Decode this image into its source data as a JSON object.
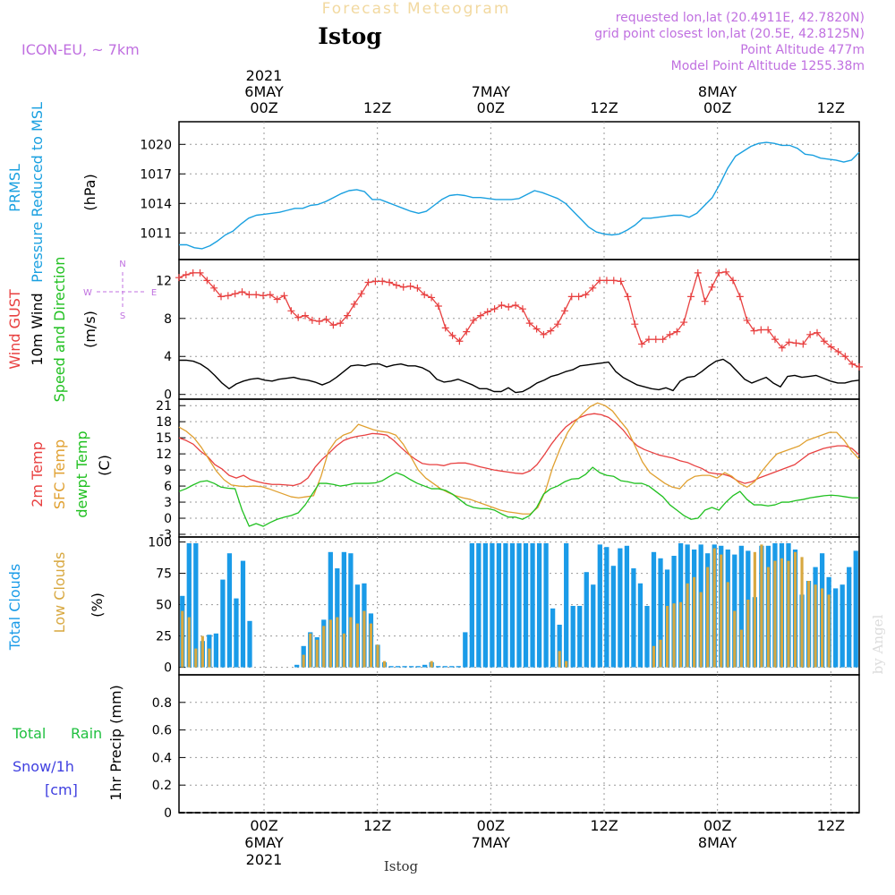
{
  "header": {
    "top_title": "Forecast Meteogram",
    "station": "Istog",
    "model": "ICON-EU, ~ 7km",
    "info_lines": [
      "requested lon,lat (20.4911E, 42.7820N)",
      "grid point closest lon,lat (20.5E, 42.8125N)",
      "Point Altitude 477m",
      "Model Point Altitude 1255.38m"
    ],
    "watermark": "by Angel",
    "bottom_label": "Istog"
  },
  "time_axis": {
    "start": "2021-05-05T15:00Z",
    "end": "2021-05-08T15:00Z",
    "ticks": [
      {
        "hour": 9,
        "time": "00Z",
        "date": "6MAY",
        "year": "2021"
      },
      {
        "hour": 21,
        "time": "12Z",
        "date": "",
        "year": ""
      },
      {
        "hour": 33,
        "time": "00Z",
        "date": "7MAY",
        "year": ""
      },
      {
        "hour": 45,
        "time": "12Z",
        "date": "",
        "year": ""
      },
      {
        "hour": 57,
        "time": "00Z",
        "date": "8MAY",
        "year": ""
      },
      {
        "hour": 69,
        "time": "12Z",
        "date": "",
        "year": ""
      }
    ]
  },
  "colors": {
    "pressure": "#1aa0e0",
    "gust": "#e84040",
    "wind": "#000000",
    "t2m": "#e84040",
    "sfc": "#e0a030",
    "dewpt": "#20c020",
    "total_cloud": "#1a9be8",
    "low_cloud": "#d8a840",
    "purple": "#c070e0",
    "rain": "#20c040",
    "snow": "#4040e0",
    "grid": "#999999"
  },
  "panel_labels": {
    "pressure": {
      "lines": [
        "PRMSL",
        "Pressure Reduced to MSL"
      ],
      "unit": "(hPa)"
    },
    "wind": {
      "lines": [
        "Wind GUST",
        "10m Wind",
        "Speed and Direction"
      ],
      "unit": "(m/s)"
    },
    "compass": {
      "n": "N",
      "s": "S",
      "w": "W",
      "e": "E"
    },
    "temp": {
      "lines": [
        "2m Temp",
        "SFC Temp",
        "dewpt Temp"
      ],
      "unit": "(C)"
    },
    "cloud": {
      "lines": [
        "Total Clouds",
        "Low Clouds"
      ],
      "unit": "(%)"
    },
    "precip": {
      "lines": [
        "Total",
        "Rain",
        "Snow/1h",
        "[cm]"
      ],
      "ylabel": "1hr Precip (mm)"
    }
  },
  "chart_data": [
    {
      "type": "line",
      "title": "PRMSL Pressure Reduced to MSL",
      "ylabel": "(hPa)",
      "ylim": [
        1008.3,
        1022.3
      ],
      "yticks": [
        1011,
        1014,
        1017,
        1020
      ],
      "ytick_labels": [
        "1011",
        "1014",
        "1017",
        "1020"
      ],
      "grid": true,
      "x_hours_start": 0,
      "x_hours_step": 1,
      "series": [
        {
          "key": "prmsl",
          "values": [
            1009.8,
            1009.8,
            1009.5,
            1009.4,
            1009.7,
            1010.2,
            1010.8,
            1011.2,
            1011.9,
            1012.5,
            1012.8,
            1012.9,
            1013.0,
            1013.1,
            1013.3,
            1013.5,
            1013.5,
            1013.8,
            1013.9,
            1014.2,
            1014.6,
            1015.0,
            1015.3,
            1015.4,
            1015.2,
            1014.4,
            1014.4,
            1014.1,
            1013.8,
            1013.5,
            1013.2,
            1013.0,
            1013.2,
            1013.8,
            1014.4,
            1014.8,
            1014.9,
            1014.8,
            1014.6,
            1014.6,
            1014.5,
            1014.4,
            1014.4,
            1014.4,
            1014.5,
            1014.9,
            1015.3,
            1015.1,
            1014.8,
            1014.5,
            1014.0,
            1013.2,
            1012.4,
            1011.6,
            1011.1,
            1010.9,
            1010.8,
            1010.9,
            1011.3,
            1011.8,
            1012.5,
            1012.5,
            1012.6,
            1012.7,
            1012.8,
            1012.8,
            1012.6,
            1013.0,
            1013.8,
            1014.6,
            1016.0,
            1017.6,
            1018.8,
            1019.3,
            1019.8,
            1020.1,
            1020.2,
            1020.1,
            1019.9,
            1019.9,
            1019.6,
            1019.0,
            1018.9,
            1018.6,
            1018.5,
            1018.4,
            1018.2,
            1018.4,
            1019.2
          ]
        }
      ]
    },
    {
      "type": "line",
      "title": "Wind GUST / 10m Wind Speed and Direction",
      "ylabel": "(m/s)",
      "ylim": [
        -0.5,
        14.2
      ],
      "yticks": [
        0,
        4,
        8,
        12
      ],
      "ytick_labels": [
        "0",
        "4",
        "8",
        "12"
      ],
      "grid": true,
      "x_hours_start": 0,
      "x_hours_step": 1,
      "series": [
        {
          "key": "gust",
          "name": "Wind GUST",
          "values": [
            12.3,
            12.6,
            12.8,
            12.8,
            12.0,
            11.2,
            10.3,
            10.4,
            10.6,
            10.8,
            10.5,
            10.5,
            10.4,
            10.5,
            10.0,
            10.4,
            8.8,
            8.1,
            8.3,
            7.8,
            7.7,
            7.9,
            7.3,
            7.5,
            8.3,
            9.5,
            10.6,
            11.8,
            11.9,
            11.9,
            11.8,
            11.5,
            11.3,
            11.4,
            11.2,
            10.5,
            10.2,
            9.3,
            7.0,
            6.2,
            5.6,
            6.6,
            7.8,
            8.3,
            8.7,
            9.0,
            9.4,
            9.2,
            9.4,
            9.0,
            7.5,
            6.9,
            6.3,
            6.7,
            7.4,
            8.8,
            10.3,
            10.3,
            10.5,
            11.2,
            12.0,
            12.0,
            12.0,
            11.9,
            10.3,
            7.4,
            5.3,
            5.8,
            5.8,
            5.8,
            6.3,
            6.6,
            7.6,
            10.3,
            12.8,
            9.8,
            11.3,
            12.8,
            12.9,
            12.0,
            10.3,
            7.8,
            6.7,
            6.8,
            6.8,
            5.8,
            4.9,
            5.5,
            5.4,
            5.3,
            6.3,
            6.5,
            5.6,
            5.0,
            4.5,
            4.0,
            3.2,
            2.9
          ]
        },
        {
          "key": "wind",
          "name": "10m Wind",
          "values": [
            3.6,
            3.6,
            3.5,
            3.2,
            2.7,
            2.0,
            1.2,
            0.6,
            1.1,
            1.4,
            1.6,
            1.7,
            1.5,
            1.4,
            1.6,
            1.7,
            1.8,
            1.6,
            1.5,
            1.3,
            1.0,
            1.3,
            1.8,
            2.4,
            3.0,
            3.1,
            3.0,
            3.2,
            3.2,
            2.9,
            3.1,
            3.2,
            3.0,
            3.0,
            2.8,
            2.4,
            1.6,
            1.3,
            1.4,
            1.6,
            1.3,
            1.0,
            0.6,
            0.6,
            0.3,
            0.3,
            0.7,
            0.2,
            0.3,
            0.7,
            1.2,
            1.5,
            1.9,
            2.1,
            2.4,
            2.6,
            3.0,
            3.1,
            3.2,
            3.3,
            3.4,
            2.4,
            1.8,
            1.4,
            1.0,
            0.8,
            0.6,
            0.5,
            0.7,
            0.4,
            1.4,
            1.8,
            1.9,
            2.4,
            3.0,
            3.5,
            3.7,
            3.2,
            2.4,
            1.6,
            1.2,
            1.5,
            1.8,
            1.2,
            0.8,
            1.9,
            2.0,
            1.8,
            1.9,
            2.0,
            1.7,
            1.4,
            1.2,
            1.2,
            1.4,
            1.5
          ]
        }
      ]
    },
    {
      "type": "line",
      "title": "2m Temp / SFC Temp / dewpt Temp",
      "ylabel": "(C)",
      "ylim": [
        -3.5,
        22.2
      ],
      "yticks": [
        -3,
        0,
        3,
        6,
        9,
        12,
        15,
        18,
        21
      ],
      "ytick_labels": [
        "-3",
        "0",
        "3",
        "6",
        "9",
        "12",
        "15",
        "18",
        "21"
      ],
      "grid": true,
      "x_hours_start": 0,
      "x_hours_step": 1,
      "series": [
        {
          "key": "t2m",
          "name": "2m Temp",
          "values": [
            15.0,
            14.5,
            13.8,
            12.5,
            11.5,
            10.0,
            9.2,
            8.0,
            7.5,
            8.0,
            7.2,
            6.8,
            6.5,
            6.3,
            6.3,
            6.2,
            6.1,
            6.5,
            7.5,
            9.5,
            11.0,
            12.2,
            13.5,
            14.5,
            15.0,
            15.3,
            15.5,
            15.8,
            15.7,
            15.5,
            14.5,
            13.2,
            12.0,
            11.0,
            10.2,
            10.0,
            10.0,
            9.8,
            10.2,
            10.3,
            10.3,
            10.0,
            9.6,
            9.3,
            9.0,
            8.8,
            8.6,
            8.4,
            8.3,
            8.8,
            10.0,
            11.8,
            13.8,
            15.5,
            17.0,
            18.0,
            18.8,
            19.3,
            19.5,
            19.3,
            18.8,
            17.8,
            16.5,
            14.8,
            13.5,
            12.8,
            12.3,
            11.8,
            11.5,
            11.2,
            10.7,
            10.4,
            9.8,
            9.3,
            8.5,
            8.3,
            8.2,
            7.8,
            7.0,
            6.5,
            6.8,
            7.5,
            8.0,
            8.5,
            9.0,
            9.5,
            10.0,
            11.0,
            12.0,
            12.5,
            13.0,
            13.3,
            13.5,
            13.5,
            13.0,
            11.8
          ]
        },
        {
          "key": "sfc",
          "name": "SFC Temp",
          "values": [
            17.0,
            16.2,
            15.0,
            13.2,
            11.0,
            8.8,
            7.2,
            6.2,
            6.0,
            5.9,
            6.0,
            5.9,
            5.5,
            5.0,
            4.5,
            4.0,
            3.8,
            4.0,
            4.2,
            7.8,
            12.5,
            14.5,
            15.5,
            16.0,
            17.5,
            17.0,
            16.5,
            16.2,
            16.0,
            15.5,
            13.8,
            11.5,
            9.0,
            7.5,
            6.5,
            5.5,
            4.8,
            4.2,
            3.8,
            3.5,
            3.0,
            2.5,
            2.0,
            1.5,
            1.2,
            1.0,
            0.8,
            0.8,
            2.0,
            5.0,
            9.5,
            13.0,
            16.0,
            18.0,
            19.5,
            20.8,
            21.5,
            21.0,
            20.0,
            18.2,
            16.5,
            13.5,
            10.5,
            8.5,
            7.5,
            6.5,
            5.8,
            5.5,
            7.0,
            7.8,
            8.0,
            8.0,
            7.5,
            8.5,
            7.8,
            6.5,
            5.8,
            6.8,
            8.8,
            10.5,
            12.0,
            12.5,
            13.0,
            13.5,
            14.5,
            15.0,
            15.5,
            16.0,
            16.0,
            14.5,
            12.5,
            11.0
          ]
        },
        {
          "key": "dewpt",
          "name": "dewpt Temp",
          "values": [
            5.0,
            5.5,
            6.2,
            6.8,
            7.0,
            6.5,
            5.8,
            5.6,
            5.5,
            1.5,
            -1.5,
            -1.0,
            -1.5,
            -0.8,
            -0.2,
            0.2,
            0.5,
            1.0,
            2.5,
            4.5,
            6.5,
            6.5,
            6.3,
            6.0,
            6.2,
            6.5,
            6.5,
            6.5,
            6.6,
            7.0,
            7.8,
            8.5,
            8.0,
            7.2,
            6.5,
            6.0,
            5.5,
            5.5,
            5.2,
            4.5,
            3.5,
            2.5,
            2.0,
            1.8,
            1.8,
            1.5,
            0.8,
            0.2,
            0.2,
            -0.2,
            0.5,
            2.0,
            4.5,
            5.5,
            6.0,
            6.8,
            7.3,
            7.4,
            8.2,
            9.5,
            8.5,
            8.0,
            7.8,
            7.0,
            6.8,
            6.5,
            6.5,
            6.0,
            5.0,
            4.0,
            2.5,
            1.5,
            0.5,
            -0.2,
            0.0,
            1.5,
            2.0,
            1.5,
            3.0,
            4.2,
            5.0,
            3.5,
            2.5,
            2.5,
            2.3,
            2.5,
            3.0,
            3.0,
            3.3,
            3.5,
            3.8,
            4.0,
            4.2,
            4.3,
            4.2,
            4.0,
            3.8,
            3.8
          ]
        }
      ]
    },
    {
      "type": "bar",
      "title": "Total Clouds / Low Clouds",
      "ylabel": "(%)",
      "ylim": [
        -6,
        104
      ],
      "yticks": [
        0,
        25,
        50,
        75,
        100
      ],
      "ytick_labels": [
        "0",
        "25",
        "50",
        "75",
        "100"
      ],
      "grid": true,
      "x_hours_start": 0,
      "x_hours_step": 1,
      "series": [
        {
          "key": "total_cloud",
          "name": "Total Clouds",
          "values": [
            57,
            99,
            99,
            21,
            26,
            27,
            70,
            91,
            55,
            85,
            37,
            0,
            0,
            0,
            0,
            0,
            0,
            2,
            17,
            28,
            24,
            38,
            92,
            79,
            92,
            91,
            66,
            67,
            43,
            18,
            4,
            1,
            1,
            1,
            1,
            1,
            2,
            4,
            1,
            1,
            1,
            1,
            28,
            99,
            99,
            99,
            99,
            99,
            99,
            99,
            99,
            99,
            99,
            99,
            99,
            47,
            34,
            99,
            49,
            49,
            76,
            66,
            98,
            96,
            81,
            95,
            97,
            79,
            67,
            49,
            92,
            87,
            78,
            89,
            99,
            98,
            94,
            98,
            91,
            98,
            97,
            94,
            90,
            97,
            93,
            56,
            97,
            97,
            99,
            99,
            99,
            94,
            58,
            69,
            80,
            91,
            72,
            63,
            66,
            80,
            93
          ]
        },
        {
          "key": "low_cloud",
          "name": "Low Clouds",
          "values": [
            45,
            40,
            15,
            25,
            15,
            0,
            0,
            0,
            0,
            0,
            0,
            0,
            0,
            0,
            0,
            0,
            0,
            0,
            10,
            27,
            22,
            33,
            38,
            40,
            27,
            40,
            35,
            45,
            35,
            18,
            5,
            0,
            0,
            0,
            0,
            0,
            0,
            5,
            0,
            0,
            0,
            0,
            0,
            0,
            0,
            0,
            0,
            0,
            0,
            0,
            0,
            0,
            0,
            0,
            0,
            0,
            13,
            5,
            0,
            0,
            0,
            0,
            0,
            0,
            0,
            0,
            0,
            0,
            0,
            0,
            17,
            22,
            49,
            51,
            52,
            67,
            72,
            60,
            80,
            95,
            90,
            68,
            45,
            30,
            54,
            92,
            98,
            80,
            85,
            87,
            85,
            92,
            88,
            69,
            66,
            63,
            58
          ]
        }
      ]
    },
    {
      "type": "line",
      "title": "1hr Precip (mm)",
      "ylabel": "1hr Precip (mm)",
      "ylim": [
        0,
        1.0
      ],
      "yticks": [
        0,
        0.2,
        0.4,
        0.6,
        0.8
      ],
      "ytick_labels": [
        "0",
        "0.2",
        "0.4",
        "0.6",
        "0.8"
      ],
      "grid": true,
      "x_hours_start": 0,
      "x_hours_step": 1,
      "series": [
        {
          "key": "rain",
          "name": "Total Rain",
          "values": [
            0,
            0,
            0,
            0,
            0,
            0,
            0,
            0,
            0,
            0,
            0,
            0,
            0,
            0,
            0,
            0,
            0,
            0,
            0,
            0,
            0,
            0,
            0,
            0,
            0,
            0,
            0,
            0,
            0,
            0,
            0,
            0,
            0,
            0,
            0,
            0,
            0,
            0,
            0,
            0,
            0,
            0,
            0,
            0,
            0,
            0,
            0,
            0,
            0,
            0,
            0,
            0,
            0,
            0,
            0,
            0,
            0,
            0,
            0,
            0,
            0,
            0,
            0,
            0,
            0,
            0,
            0,
            0,
            0,
            0,
            0,
            0,
            0
          ]
        }
      ]
    }
  ]
}
